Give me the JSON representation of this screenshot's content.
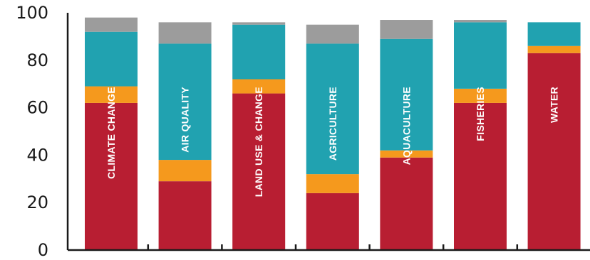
{
  "chart_data": {
    "type": "bar",
    "stacked": true,
    "categories": [
      "CLIMATE CHANGE",
      "AIR QUALITY",
      "LAND USE & CHANGE",
      "AGRICULTURE",
      "AQUACULTURE",
      "FISHERIES",
      "WATER"
    ],
    "series": [
      {
        "color": "#b81e32",
        "values": [
          62,
          29,
          66,
          24,
          39,
          62,
          83
        ]
      },
      {
        "color": "#f5991d",
        "values": [
          7,
          9,
          6,
          8,
          3,
          6,
          3
        ]
      },
      {
        "color": "#21a2b0",
        "values": [
          23,
          49,
          23,
          55,
          47,
          28,
          10
        ]
      },
      {
        "color": "#9c9c9c",
        "values": [
          6,
          9,
          1,
          8,
          8,
          1,
          0
        ]
      }
    ],
    "ylim": [
      0,
      100
    ],
    "yticks": [
      0,
      20,
      40,
      60,
      80,
      100
    ],
    "grid": false,
    "legend": "none"
  }
}
